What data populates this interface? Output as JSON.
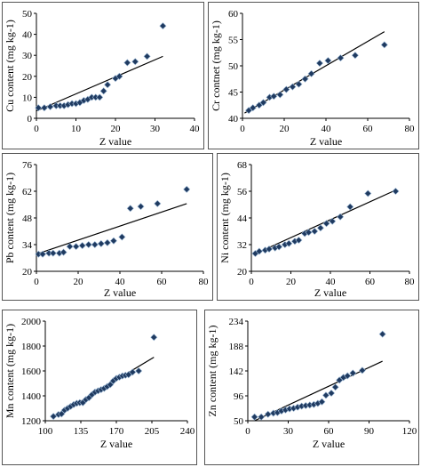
{
  "chart_data": [
    {
      "id": "cu",
      "type": "scatter",
      "xlabel": "Z value",
      "ylabel": "Cu content (mg kg-1)",
      "xlim": [
        0,
        40
      ],
      "ylim": [
        0,
        50
      ],
      "xticks": [
        0,
        10,
        20,
        30,
        40
      ],
      "yticks": [
        0,
        10,
        20,
        30,
        40,
        50
      ],
      "x": [
        0.5,
        2,
        3.5,
        5,
        6,
        7,
        8,
        9,
        10,
        11,
        12,
        13,
        14,
        15,
        16,
        17,
        18,
        20,
        21,
        23,
        25,
        28,
        32
      ],
      "y": [
        5,
        5,
        5.5,
        6,
        6,
        6,
        6.5,
        7,
        7,
        7.5,
        8.5,
        9,
        10,
        10,
        10,
        13,
        16,
        19,
        20,
        26.5,
        27,
        29.5,
        44
      ],
      "trendline": [
        [
          0,
          3.5
        ],
        [
          32,
          29.5
        ]
      ],
      "marker_color": "#1f3a60"
    },
    {
      "id": "cr",
      "type": "scatter",
      "xlabel": "Z value",
      "ylabel": "Cr contnet (mg kg-1)",
      "xlim": [
        0,
        80
      ],
      "ylim": [
        40,
        60
      ],
      "xticks": [
        0,
        20,
        40,
        60,
        80
      ],
      "yticks": [
        40,
        45,
        50,
        55,
        60
      ],
      "x": [
        3,
        5,
        8,
        10,
        13,
        15,
        18,
        21,
        24,
        27,
        30,
        33,
        37,
        41,
        47,
        54,
        68
      ],
      "y": [
        41.5,
        42,
        42.5,
        43,
        44,
        44.2,
        44.5,
        45.5,
        46,
        46.5,
        47.5,
        48.5,
        50.5,
        51,
        51.5,
        52,
        54
      ],
      "trendline": [
        [
          1,
          41
        ],
        [
          68,
          56.5
        ]
      ],
      "marker_color": "#1f3a60"
    },
    {
      "id": "pb",
      "type": "scatter",
      "xlabel": "Z value",
      "ylabel": "Pb content (mg kg-1)",
      "xlim": [
        0,
        80
      ],
      "ylim": [
        20,
        76
      ],
      "xticks": [
        0,
        20,
        40,
        60,
        80
      ],
      "yticks": [
        20,
        34,
        48,
        62,
        76
      ],
      "x": [
        1,
        3,
        6,
        8,
        11,
        13,
        16,
        19,
        22,
        25,
        28,
        31,
        34,
        37,
        41,
        45,
        50,
        58,
        72
      ],
      "y": [
        29,
        29,
        29.5,
        29.5,
        29.5,
        30,
        33,
        33,
        33.5,
        34,
        34,
        34.5,
        35,
        36,
        38,
        53,
        54,
        55.5,
        63
      ],
      "trendline": [
        [
          0,
          29
        ],
        [
          72,
          55.5
        ]
      ],
      "marker_color": "#1f3a60"
    },
    {
      "id": "ni",
      "type": "scatter",
      "xlabel": "Z value",
      "ylabel": "Ni content (mg kg-1)",
      "xlim": [
        0,
        80
      ],
      "ylim": [
        20,
        68
      ],
      "xticks": [
        0,
        20,
        40,
        60,
        80
      ],
      "yticks": [
        20,
        32,
        44,
        56,
        68
      ],
      "x": [
        2,
        4,
        7,
        9,
        12,
        14,
        17,
        19,
        22,
        24,
        27,
        29,
        32,
        35,
        38,
        41,
        45,
        50,
        59,
        73
      ],
      "y": [
        28,
        29,
        29.5,
        30,
        30.5,
        31,
        32,
        32.5,
        33.5,
        34,
        37,
        37.5,
        38,
        39.5,
        41.5,
        42.5,
        44.5,
        49,
        55,
        56
      ],
      "trendline": [
        [
          1,
          27.5
        ],
        [
          73,
          56.5
        ]
      ],
      "marker_color": "#1f3a60"
    },
    {
      "id": "mn",
      "type": "scatter",
      "xlabel": "Z value",
      "ylabel": "Mn content (mg kg-1)",
      "xlim": [
        100,
        240
      ],
      "ylim": [
        1200,
        2000
      ],
      "xticks": [
        100,
        135,
        170,
        205,
        240
      ],
      "yticks": [
        1200,
        1400,
        1600,
        1800,
        2000
      ],
      "x": [
        108,
        113,
        116,
        119,
        122,
        125,
        128,
        131,
        134,
        137,
        140,
        143,
        146,
        149,
        152,
        155,
        158,
        161,
        164,
        167,
        170,
        173,
        176,
        179,
        182,
        186,
        192,
        207
      ],
      "y": [
        1235,
        1250,
        1255,
        1285,
        1300,
        1315,
        1330,
        1340,
        1345,
        1345,
        1370,
        1385,
        1410,
        1430,
        1440,
        1450,
        1460,
        1475,
        1490,
        1520,
        1540,
        1550,
        1560,
        1565,
        1570,
        1590,
        1600,
        1870
      ],
      "trendline": [
        [
          108,
          1225
        ],
        [
          207,
          1710
        ]
      ],
      "marker_color": "#1f3a60"
    },
    {
      "id": "zn",
      "type": "scatter",
      "xlabel": "Z value",
      "ylabel": "Zn content (mg kg-1)",
      "xlim": [
        0,
        120
      ],
      "ylim": [
        50,
        234
      ],
      "xticks": [
        0,
        30,
        60,
        90,
        120
      ],
      "yticks": [
        50,
        96,
        142,
        188,
        234
      ],
      "x": [
        5,
        10,
        15,
        19,
        22,
        25,
        28,
        31,
        34,
        37,
        40,
        43,
        46,
        49,
        52,
        55,
        58,
        62,
        65,
        68,
        71,
        74,
        78,
        85,
        100
      ],
      "y": [
        57,
        57,
        62,
        64,
        65,
        68,
        70,
        72,
        73,
        75,
        77,
        78,
        79,
        80,
        82,
        85,
        97,
        101,
        112,
        125,
        130,
        133,
        138,
        143,
        210
      ],
      "trendline": [
        [
          5,
          50
        ],
        [
          100,
          160
        ]
      ],
      "marker_color": "#1f3a60"
    }
  ]
}
